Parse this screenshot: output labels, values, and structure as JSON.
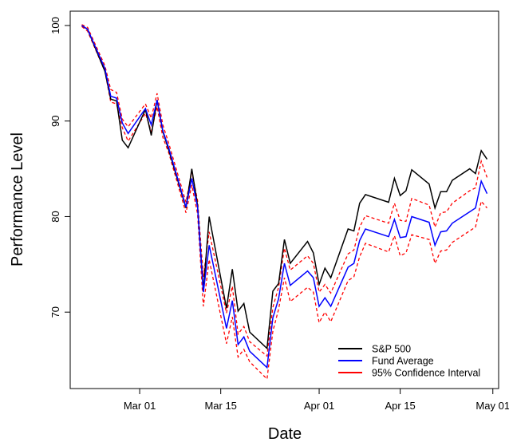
{
  "chart_data": {
    "type": "line",
    "title": "",
    "xlabel": "Date",
    "ylabel": "Performance Level",
    "x_ticks": [
      {
        "date": "2020-03-01",
        "label": "Mar 01"
      },
      {
        "date": "2020-03-15",
        "label": "Mar 15"
      },
      {
        "date": "2020-04-01",
        "label": "Apr 01"
      },
      {
        "date": "2020-04-15",
        "label": "Apr 15"
      },
      {
        "date": "2020-05-01",
        "label": "May 01"
      }
    ],
    "y_ticks": [
      70,
      80,
      90,
      100
    ],
    "xlim": [
      "2020-02-18",
      "2020-05-02"
    ],
    "ylim": [
      62,
      101.5
    ],
    "grid": false,
    "legend_position": "bottom-right",
    "x": [
      "2020-02-20",
      "2020-02-21",
      "2020-02-24",
      "2020-02-25",
      "2020-02-26",
      "2020-02-27",
      "2020-02-28",
      "2020-03-02",
      "2020-03-03",
      "2020-03-04",
      "2020-03-05",
      "2020-03-06",
      "2020-03-09",
      "2020-03-10",
      "2020-03-11",
      "2020-03-12",
      "2020-03-13",
      "2020-03-16",
      "2020-03-17",
      "2020-03-18",
      "2020-03-19",
      "2020-03-20",
      "2020-03-23",
      "2020-03-24",
      "2020-03-25",
      "2020-03-26",
      "2020-03-27",
      "2020-03-30",
      "2020-03-31",
      "2020-04-01",
      "2020-04-02",
      "2020-04-03",
      "2020-04-06",
      "2020-04-07",
      "2020-04-08",
      "2020-04-09",
      "2020-04-13",
      "2020-04-14",
      "2020-04-15",
      "2020-04-16",
      "2020-04-17",
      "2020-04-20",
      "2020-04-21",
      "2020-04-22",
      "2020-04-23",
      "2020-04-24",
      "2020-04-27",
      "2020-04-28",
      "2020-04-29",
      "2020-04-30"
    ],
    "series": [
      {
        "name": "S&P 500",
        "color": "#000000",
        "style": "solid",
        "values": [
          100.0,
          99.6,
          95.2,
          92.3,
          92.1,
          88.0,
          87.2,
          91.2,
          88.5,
          92.2,
          88.9,
          87.0,
          80.9,
          85.0,
          81.2,
          72.2,
          80.0,
          70.4,
          74.5,
          70.1,
          70.9,
          67.9,
          66.2,
          72.2,
          73.0,
          77.6,
          75.1,
          77.4,
          76.2,
          72.9,
          74.6,
          73.6,
          78.7,
          78.5,
          81.4,
          82.3,
          81.5,
          84.0,
          82.2,
          82.7,
          84.9,
          83.4,
          80.9,
          82.6,
          82.6,
          83.8,
          85.0,
          84.5,
          86.9,
          86.0
        ]
      },
      {
        "name": "Fund Average",
        "color": "#0000ff",
        "style": "solid",
        "values": [
          100.0,
          99.6,
          95.5,
          92.6,
          92.4,
          89.8,
          88.7,
          91.3,
          89.6,
          92.2,
          89.0,
          87.2,
          81.0,
          84.0,
          81.0,
          72.1,
          77.0,
          68.3,
          71.2,
          66.6,
          67.4,
          65.9,
          64.2,
          69.4,
          71.4,
          75.1,
          72.8,
          74.3,
          73.6,
          70.6,
          71.5,
          70.6,
          74.7,
          75.1,
          77.5,
          78.7,
          77.9,
          79.7,
          77.8,
          77.9,
          80.0,
          79.4,
          77.0,
          78.4,
          78.5,
          79.3,
          80.5,
          80.9,
          83.7,
          82.4
        ]
      },
      {
        "name": "95% Confidence Interval",
        "color": "#ff0000",
        "style": "dashed",
        "upper": [
          100.1,
          99.8,
          95.8,
          93.3,
          93.0,
          90.2,
          89.4,
          91.8,
          90.3,
          92.9,
          89.6,
          87.7,
          81.5,
          84.7,
          81.7,
          73.7,
          78.4,
          69.9,
          72.7,
          67.7,
          68.5,
          66.9,
          65.4,
          70.5,
          72.6,
          76.7,
          74.4,
          75.9,
          75.1,
          72.1,
          72.9,
          72.0,
          76.1,
          76.5,
          78.9,
          80.1,
          79.3,
          81.4,
          79.6,
          79.5,
          81.9,
          81.2,
          78.9,
          80.4,
          80.5,
          81.4,
          82.7,
          83.0,
          85.8,
          84.1
        ],
        "lower": [
          99.9,
          99.4,
          95.2,
          92.0,
          91.8,
          89.3,
          87.9,
          90.8,
          88.9,
          91.5,
          88.3,
          86.7,
          80.4,
          83.3,
          80.3,
          70.6,
          75.5,
          66.7,
          69.5,
          65.3,
          66.1,
          64.8,
          63.0,
          68.0,
          70.3,
          73.6,
          71.1,
          72.6,
          72.1,
          68.9,
          70.0,
          69.0,
          73.3,
          73.7,
          75.8,
          77.2,
          76.3,
          78.0,
          75.9,
          76.2,
          78.1,
          77.6,
          75.1,
          76.4,
          76.5,
          77.3,
          78.5,
          78.9,
          81.6,
          80.9
        ]
      }
    ]
  }
}
